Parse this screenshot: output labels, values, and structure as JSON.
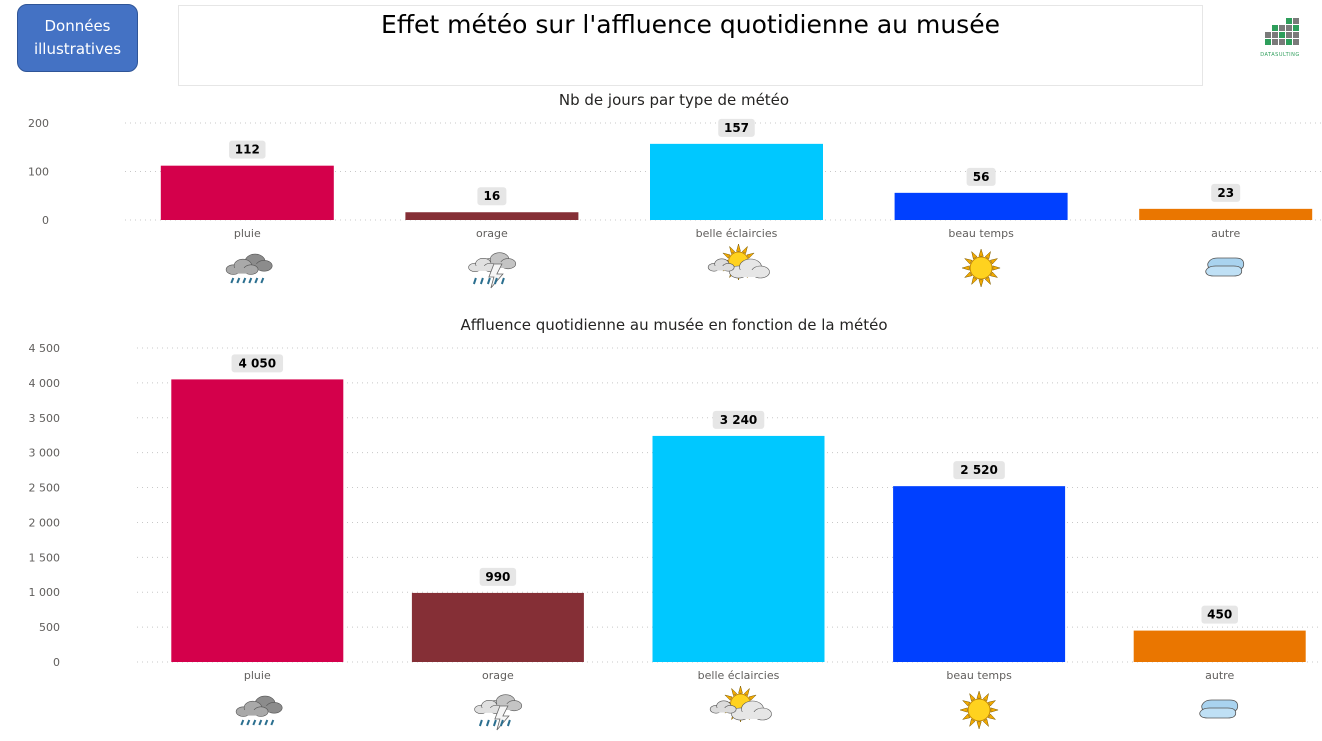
{
  "badge": {
    "label": "Données\nillustratives"
  },
  "header": {
    "title": "Effet météo sur l'affluence quotidienne au musée"
  },
  "logo": {
    "text": "DATASULTING",
    "icon": "grid-logo-icon"
  },
  "chart_data": [
    {
      "type": "bar",
      "title": "Nb de jours par type de météo",
      "categories": [
        "pluie",
        "orage",
        "belle éclaircies",
        "beau temps",
        "autre"
      ],
      "values": [
        112,
        16,
        157,
        56,
        23
      ],
      "value_labels": [
        "112",
        "16",
        "157",
        "56",
        "23"
      ],
      "colors": [
        "#d4004b",
        "#852f36",
        "#00c8ff",
        "#0040ff",
        "#ea7600"
      ],
      "icons": [
        "rain-cloud-icon",
        "storm-cloud-icon",
        "sun-cloud-icon",
        "sun-icon",
        "cloud-icon"
      ],
      "ylim": [
        0,
        200
      ],
      "yticks": [
        0,
        100,
        200
      ],
      "ytick_labels": [
        "0",
        "100",
        "200"
      ],
      "grid": true,
      "legend": "none"
    },
    {
      "type": "bar",
      "title": "Affluence quotidienne au musée en fonction de la météo",
      "categories": [
        "pluie",
        "orage",
        "belle éclaircies",
        "beau temps",
        "autre"
      ],
      "values": [
        4050,
        990,
        3240,
        2520,
        450
      ],
      "value_labels": [
        "4 050",
        "990",
        "3 240",
        "2 520",
        "450"
      ],
      "colors": [
        "#d4004b",
        "#852f36",
        "#00c8ff",
        "#0040ff",
        "#ea7600"
      ],
      "icons": [
        "rain-cloud-icon",
        "storm-cloud-icon",
        "sun-cloud-icon",
        "sun-icon",
        "cloud-icon"
      ],
      "ylim": [
        0,
        4500
      ],
      "yticks": [
        0,
        500,
        1000,
        1500,
        2000,
        2500,
        3000,
        3500,
        4000,
        4500
      ],
      "ytick_labels": [
        "0",
        "500",
        "1 000",
        "1 500",
        "2 000",
        "2 500",
        "3 000",
        "3 500",
        "4 000",
        "4 500"
      ],
      "grid": true,
      "legend": "none"
    }
  ]
}
